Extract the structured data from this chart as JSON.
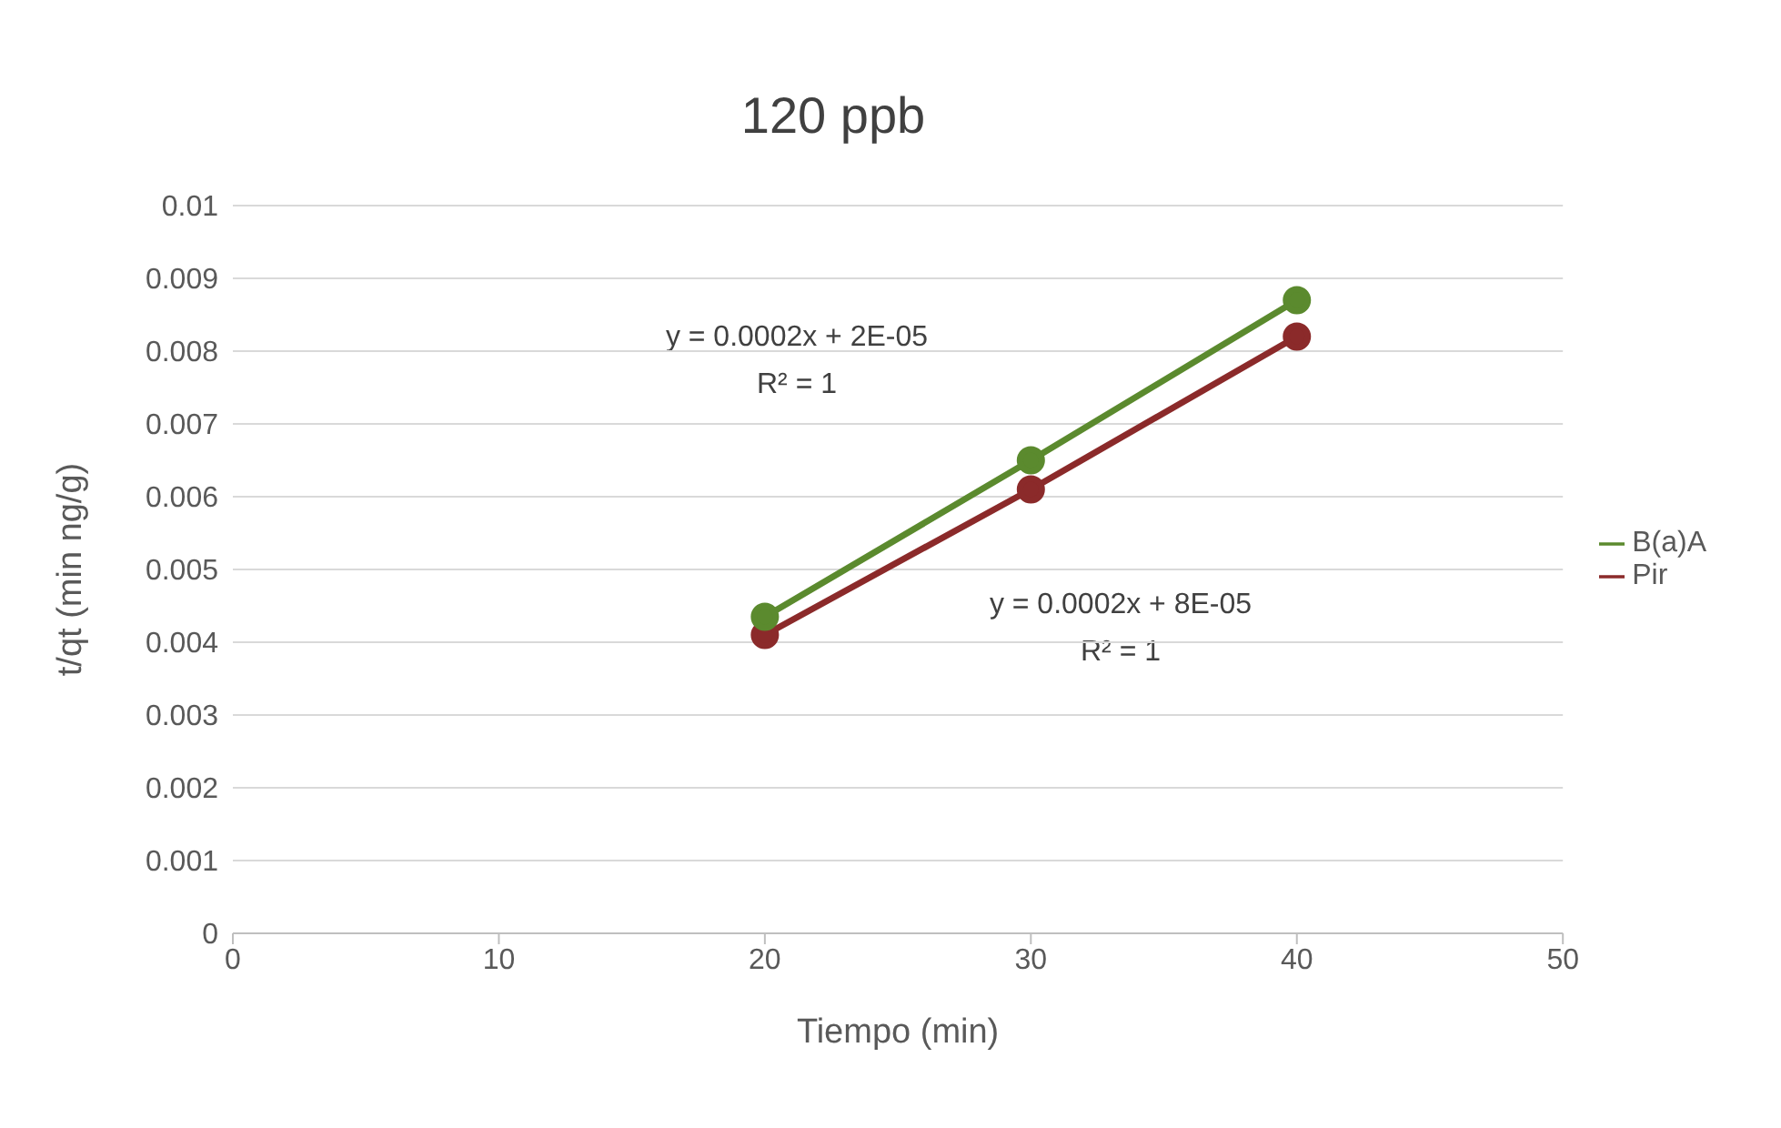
{
  "chart_data": {
    "type": "line",
    "title": "120 ppb",
    "xlabel": "Tiempo (min)",
    "ylabel": "t/qt     (min ng/g)",
    "x": [
      20,
      30,
      40
    ],
    "series": [
      {
        "name": "Pir",
        "color": "#8b2a2a",
        "values": [
          0.0041,
          0.0061,
          0.0082
        ]
      },
      {
        "name": "B(a)A",
        "color": "#5b8a2e",
        "values": [
          0.00435,
          0.0065,
          0.0087
        ]
      }
    ],
    "xlim": [
      0,
      50
    ],
    "xticks": [
      0,
      10,
      20,
      30,
      40,
      50
    ],
    "ylim": [
      0,
      0.01
    ],
    "yticks": [
      0,
      0.001,
      0.002,
      0.003,
      0.004,
      0.005,
      0.006,
      0.007,
      0.008,
      0.009,
      0.01
    ],
    "grid": "y",
    "legend": "right",
    "marker": "circle",
    "line_style": "solid",
    "annotations": [
      "y = 0.0002x + 2E-05\nR² = 1",
      "y = 0.0002x + 8E-05\nR² = 1"
    ]
  }
}
